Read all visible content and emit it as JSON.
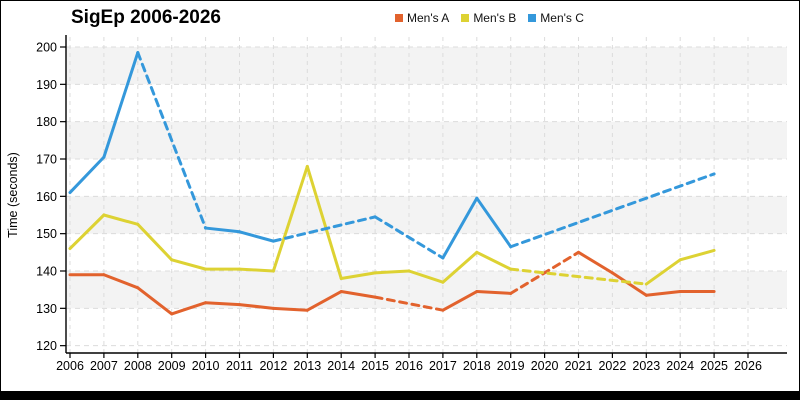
{
  "chart_data": {
    "type": "line",
    "title": "SigEp 2006-2026",
    "xlabel": "",
    "ylabel": "Time (seconds)",
    "x_ticks": [
      2006,
      2007,
      2008,
      2009,
      2010,
      2011,
      2012,
      2013,
      2014,
      2015,
      2016,
      2017,
      2018,
      2019,
      2020,
      2021,
      2022,
      2023,
      2024,
      2025,
      2026
    ],
    "y_ticks": [
      120,
      130,
      140,
      150,
      160,
      170,
      180,
      190,
      200
    ],
    "xlim": [
      2005.9,
      2027.1
    ],
    "ylim": [
      118,
      202
    ],
    "grid": "dashed-light",
    "grid_color": "#dcdcdc",
    "background_bands": [
      [
        130,
        140
      ],
      [
        150,
        160
      ],
      [
        170,
        180
      ],
      [
        190,
        200
      ]
    ],
    "band_color": "#f3f3f3",
    "legend_position": "top-center",
    "legend_entries": [
      "Men's A",
      "Men's B",
      "Men's C"
    ],
    "series": [
      {
        "name": "Men's A",
        "color": "#e2622d",
        "points": [
          [
            2006,
            139
          ],
          [
            2007,
            139
          ],
          [
            2008,
            135.5
          ],
          [
            2009,
            128.5
          ],
          [
            2010,
            131.5
          ],
          [
            2011,
            131
          ],
          [
            2012,
            130
          ],
          [
            2013,
            129.5
          ],
          [
            2014,
            134.5
          ],
          [
            2015,
            133
          ],
          [
            2017,
            129.5
          ],
          [
            2018,
            134.5
          ],
          [
            2019,
            134
          ],
          [
            2021,
            145
          ],
          [
            2022,
            139.5
          ],
          [
            2023,
            133.5
          ],
          [
            2024,
            134.5
          ],
          [
            2025,
            134.5
          ]
        ],
        "dashed_ranges": [
          [
            2015,
            2017
          ],
          [
            2019,
            2021
          ]
        ]
      },
      {
        "name": "Men's B",
        "color": "#ddd233",
        "points": [
          [
            2006,
            146
          ],
          [
            2007,
            155
          ],
          [
            2008,
            152.5
          ],
          [
            2009,
            143
          ],
          [
            2010,
            140.5
          ],
          [
            2011,
            140.5
          ],
          [
            2012,
            140
          ],
          [
            2013,
            168
          ],
          [
            2014,
            138
          ],
          [
            2015,
            139.5
          ],
          [
            2016,
            140
          ],
          [
            2017,
            137
          ],
          [
            2018,
            145
          ],
          [
            2019,
            140.5
          ],
          [
            2023,
            136.5
          ],
          [
            2024,
            143
          ],
          [
            2025,
            145.5
          ]
        ],
        "dashed_ranges": [
          [
            2019,
            2023
          ]
        ]
      },
      {
        "name": "Men's C",
        "color": "#3498db",
        "points": [
          [
            2006,
            161
          ],
          [
            2007,
            170.5
          ],
          [
            2008,
            198.5
          ],
          [
            2010,
            151.5
          ],
          [
            2011,
            150.5
          ],
          [
            2012,
            148
          ],
          [
            2015,
            154.5
          ],
          [
            2017,
            143.5
          ],
          [
            2018,
            159.5
          ],
          [
            2019,
            146.5
          ],
          [
            2025,
            166
          ]
        ],
        "dashed_ranges": [
          [
            2008,
            2010
          ],
          [
            2012,
            2017
          ],
          [
            2019,
            2025
          ]
        ]
      }
    ]
  }
}
